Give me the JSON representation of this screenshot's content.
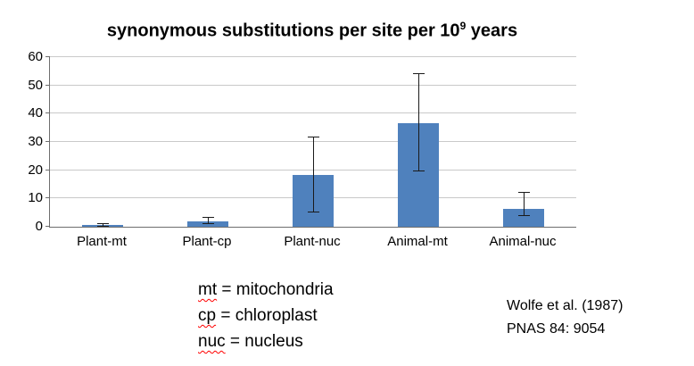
{
  "title": {
    "prefix": "synonymous substitutions per site per 10",
    "sup": "9",
    "suffix": " years"
  },
  "chart_data": {
    "type": "bar",
    "title": "synonymous substitutions per site per 10^9 years",
    "categories": [
      "Plant-mt",
      "Plant-cp",
      "Plant-nuc",
      "Animal-mt",
      "Animal-nuc"
    ],
    "values": [
      0.5,
      1.8,
      18.2,
      36.5,
      6.2
    ],
    "error_low": [
      0.1,
      0.9,
      5,
      19.5,
      3.8
    ],
    "error_high": [
      1.1,
      3.2,
      31.5,
      54,
      12
    ],
    "ylim": [
      0,
      60
    ],
    "yticks": [
      0,
      10,
      20,
      30,
      40,
      50,
      60
    ],
    "xlabel": "",
    "ylabel": "",
    "grid": true,
    "legend_position": "none",
    "bar_color": "#4f81bd",
    "grid_color": "#c9c9c9",
    "axis_color": "#6e6e6e",
    "error_color": "#1a1a1a"
  },
  "notes": {
    "items": [
      {
        "abbr": "mt",
        "rest": " = mitochondria"
      },
      {
        "abbr": "cp",
        "rest": " = chloroplast"
      },
      {
        "abbr": "nuc",
        "rest": " = nucleus"
      }
    ]
  },
  "citation": {
    "line1": "Wolfe et al. (1987)",
    "line2": "PNAS 84: 9054"
  }
}
